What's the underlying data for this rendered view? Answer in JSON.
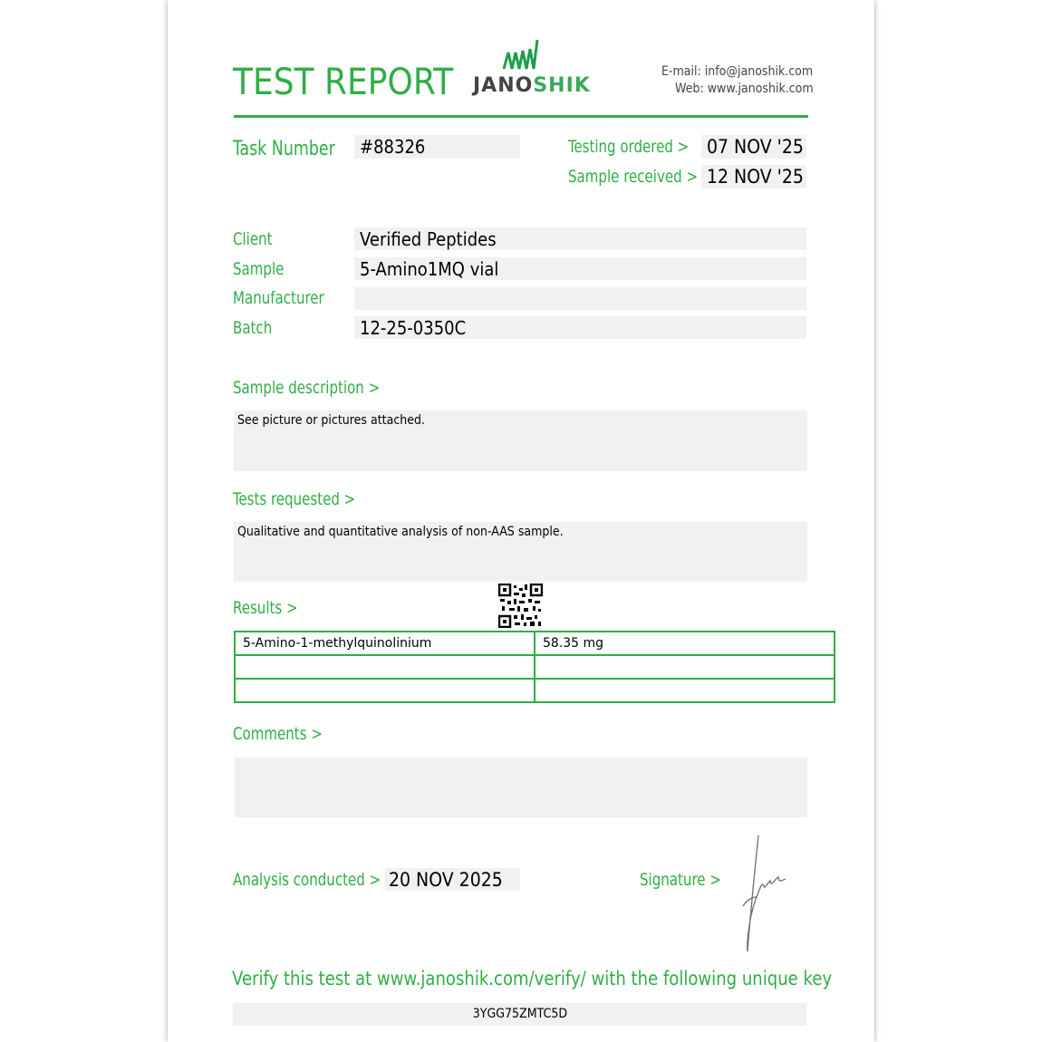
{
  "header": {
    "title": "TEST REPORT",
    "logo_text_dark": "JANO",
    "logo_text_accent": "SHIK",
    "email": "E-mail: info@janoshik.com",
    "web": "Web: www.janoshik.com"
  },
  "task": {
    "label": "Task Number",
    "value": "#88326"
  },
  "dates": {
    "ordered_label": "Testing ordered  >",
    "ordered_value": "07 NOV '25",
    "received_label": "Sample received >",
    "received_value": "12 NOV '25"
  },
  "fields": [
    {
      "label": "Client",
      "value": "Verified Peptides"
    },
    {
      "label": "Sample",
      "value": "5-Amino1MQ vial"
    },
    {
      "label": "Manufacturer",
      "value": ""
    },
    {
      "label": "Batch",
      "value": "12-25-0350C"
    }
  ],
  "description": {
    "label": "Sample description >",
    "text": "See picture or pictures attached."
  },
  "tests": {
    "label": "Tests requested >",
    "text": "Qualitative and quantitative analysis of non-AAS sample."
  },
  "results": {
    "label": "Results >",
    "rows": [
      [
        "5-Amino-1-methylquinolinium",
        "58.35 mg"
      ],
      [
        "",
        ""
      ],
      [
        "",
        ""
      ]
    ]
  },
  "comments": {
    "label": "Comments >",
    "text": ""
  },
  "analysis": {
    "label": "Analysis conducted >",
    "value": "20 NOV 2025"
  },
  "signature": {
    "label": "Signature >"
  },
  "verify": {
    "text": "Verify this test at www.janoshik.com/verify/ with the following unique key",
    "key": "3YGG75ZMTC5D"
  },
  "colors": {
    "accent": "#2fae45",
    "box": "#f1f1f1"
  }
}
